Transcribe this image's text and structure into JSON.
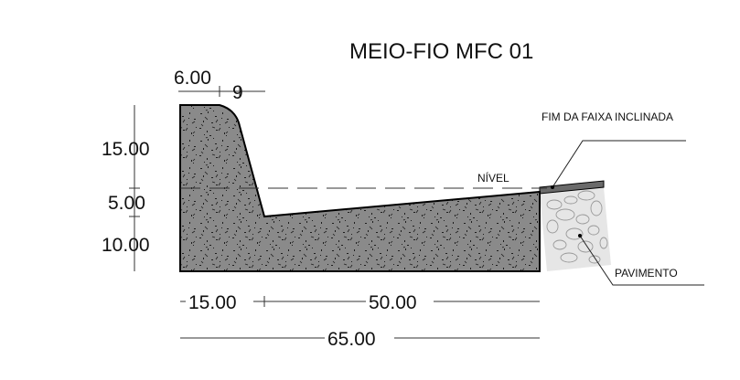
{
  "title": "MEIO-FIO MFC 01",
  "dimensions": {
    "top_width": "6.00",
    "top_offset": "9",
    "height_upper": "15.00",
    "height_middle": "5.00",
    "height_lower": "10.00",
    "base_left": "15.00",
    "base_right": "50.00",
    "total_width": "65.00"
  },
  "callouts": {
    "level": "NÍVEL",
    "end_of_slope": "FIM DA FAIXA INCLINADA",
    "pavement": "PAVIMENTO"
  },
  "colors": {
    "concrete": "#8a8a8a",
    "concrete_outline": "#000000",
    "pavement_fill": "#e6e6e6",
    "slope_strip": "#6a6a6a",
    "speckle": "#1e1e1e"
  }
}
